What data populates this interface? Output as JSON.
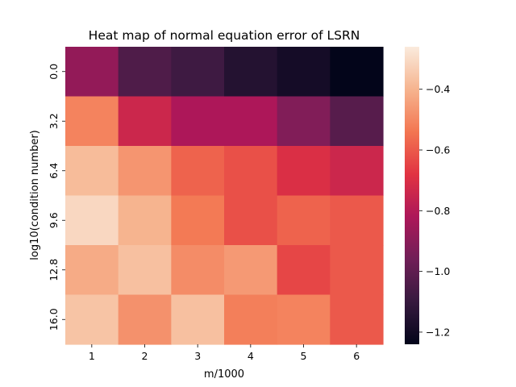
{
  "chart_data": {
    "type": "heatmap",
    "title": "Heat map of normal equation error of LSRN",
    "xlabel": "m/1000",
    "ylabel": "log10(condition number)",
    "x_categories": [
      "1",
      "2",
      "3",
      "4",
      "5",
      "6"
    ],
    "y_categories": [
      "0.0",
      "3.2",
      "6.4",
      "9.6",
      "12.8",
      "16.0"
    ],
    "values": [
      [
        -0.88,
        -1.04,
        -1.08,
        -1.15,
        -1.19,
        -1.24
      ],
      [
        -0.51,
        -0.74,
        -0.82,
        -0.82,
        -0.92,
        -1.02
      ],
      [
        -0.38,
        -0.47,
        -0.58,
        -0.62,
        -0.7,
        -0.74
      ],
      [
        -0.31,
        -0.4,
        -0.53,
        -0.62,
        -0.58,
        -0.6
      ],
      [
        -0.42,
        -0.37,
        -0.49,
        -0.46,
        -0.64,
        -0.6
      ],
      [
        -0.36,
        -0.48,
        -0.37,
        -0.52,
        -0.51,
        -0.6
      ]
    ],
    "colorbar": {
      "vmin": -1.24,
      "vmax": -0.26,
      "ticks": [
        "−0.4",
        "−0.6",
        "−0.8",
        "−1.0",
        "−1.2"
      ],
      "tick_values": [
        -0.4,
        -0.6,
        -0.8,
        -1.0,
        -1.2
      ]
    },
    "colormap": "rocket",
    "colormap_stops": [
      "#03051a",
      "#36193e",
      "#701f57",
      "#ad1759",
      "#e13342",
      "#f37651",
      "#f6b48f",
      "#faebdd"
    ]
  }
}
